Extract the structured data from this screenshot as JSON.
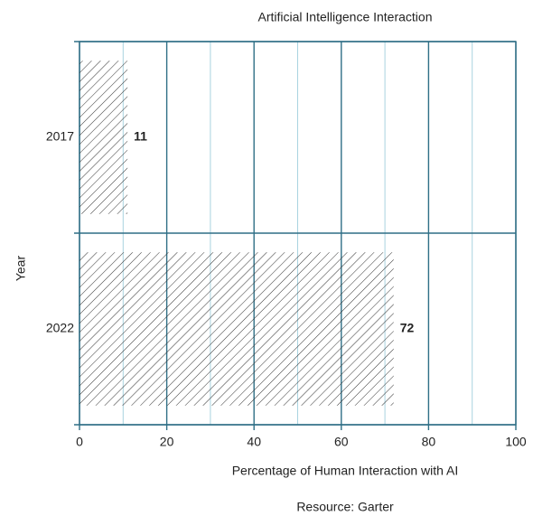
{
  "chart_data": {
    "type": "barh",
    "title": "Artificial Intelligence Interaction",
    "xlabel": "Percentage of Human Interaction with AI",
    "ylabel": "Year",
    "annotation": "Resource: Garter",
    "categories": [
      "2017",
      "2022"
    ],
    "values": [
      11,
      72
    ],
    "color": "#333333",
    "xlim": [
      0,
      100
    ],
    "xticks": [
      0,
      20,
      40,
      60,
      80,
      100
    ],
    "xminorticks": [
      10,
      30,
      50,
      70,
      90
    ],
    "grid": true
  }
}
